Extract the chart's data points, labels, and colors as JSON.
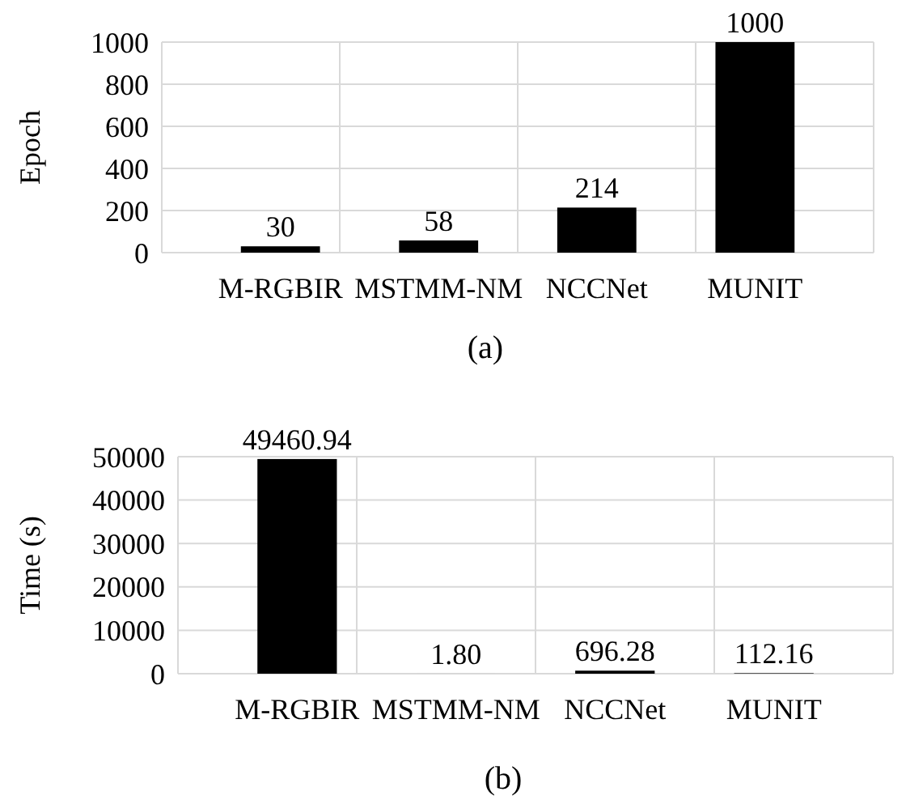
{
  "chart_data": [
    {
      "type": "bar",
      "categories": [
        "M-RGBIR",
        "MSTMM-NM",
        "NCCNet",
        "MUNIT"
      ],
      "values": [
        30,
        58,
        214,
        1000
      ],
      "color": "#000000",
      "ylabel": "Epoch",
      "ylim": [
        0,
        1000
      ],
      "yticks": [
        0,
        200,
        400,
        600,
        800,
        1000
      ],
      "grid": true,
      "data_labels": true,
      "annotations": [
        "(a)"
      ]
    },
    {
      "type": "bar",
      "categories": [
        "M-RGBIR",
        "MSTMM-NM",
        "NCCNet",
        "MUNIT"
      ],
      "values": [
        49460.94,
        1.8,
        696.28,
        112.16
      ],
      "value_labels": [
        "49460.94",
        "1.80",
        "696.28",
        "112.16"
      ],
      "color": "#000000",
      "ylabel": "Time (s)",
      "ylim": [
        0,
        50000
      ],
      "yticks": [
        0,
        10000,
        20000,
        30000,
        40000,
        50000
      ],
      "grid": true,
      "annotations": [
        "(b)"
      ]
    }
  ]
}
